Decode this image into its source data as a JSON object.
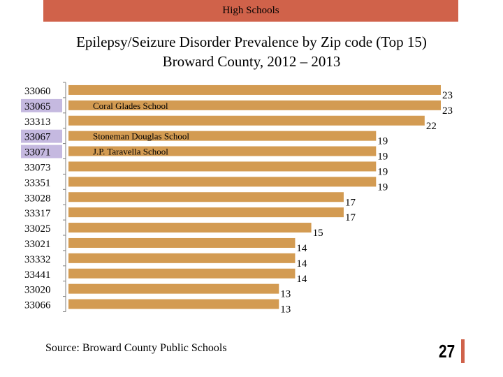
{
  "header": {
    "banner": "High Schools"
  },
  "chart_data": {
    "type": "bar",
    "orientation": "horizontal",
    "title_line1": "Epilepsy/Seizure Disorder Prevalence by Zip code (Top 15)",
    "title_line2": "Broward County, 2012 – 2013",
    "categories": [
      "33060",
      "33065",
      "33313",
      "33067",
      "33071",
      "33073",
      "33351",
      "33028",
      "33317",
      "33025",
      "33021",
      "33332",
      "33441",
      "33020",
      "33066"
    ],
    "values": [
      23,
      23,
      22,
      19,
      19,
      19,
      19,
      17,
      17,
      15,
      14,
      14,
      14,
      13,
      13
    ],
    "highlighted": [
      "33065",
      "33067",
      "33071"
    ],
    "annotations": [
      {
        "category": "33065",
        "text": "Coral Glades School"
      },
      {
        "category": "33067",
        "text": "Stoneman Douglas School"
      },
      {
        "category": "33071",
        "text": "J.P. Taravella School"
      }
    ],
    "xlim": [
      0,
      23
    ],
    "grid": false,
    "colors": {
      "bar": "#d39b52",
      "highlight": "#c5b9e0",
      "axis": "#7f7f7f"
    }
  },
  "footer": {
    "source": "Source: Broward County Public Schools",
    "page_number": "27",
    "accent": "#d0624a"
  }
}
